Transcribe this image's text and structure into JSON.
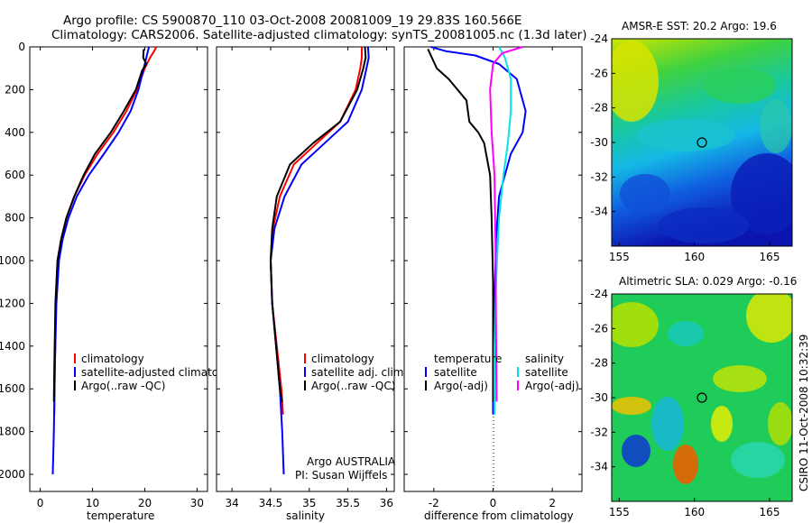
{
  "header": {
    "title_line1": "Argo profile: CS 5900870_110 03-Oct-2008 20081009_19 29.83S 160.566E",
    "title_line2": "Climatology: CARS2006. Satellite-adjusted climatology: synTS_20081005.nc (1.3d later)"
  },
  "footer": {
    "agency": "Argo AUSTRALIA",
    "pi": "PI: Susan Wijffels",
    "stamp": "CSIRO 11-Oct-2008 10:32:39"
  },
  "colors": {
    "climatology": "#ff0000",
    "satellite": "#0000ff",
    "argo": "#000000",
    "salinity_satellite": "#00e5e5",
    "salinity_argo": "#ff00ff"
  },
  "chart_data": [
    {
      "id": "temperature",
      "type": "line",
      "xlabel": "temperature",
      "ylabel": "",
      "xlim": [
        -2,
        32
      ],
      "ylim": [
        2080,
        0
      ],
      "xticks": [
        0,
        10,
        20,
        30
      ],
      "yticks": [
        0,
        200,
        400,
        600,
        800,
        1000,
        1200,
        1400,
        1600,
        1800,
        2000
      ],
      "legend": [
        "climatology",
        "satellite-adjusted climatology",
        "Argo(..raw -QC)"
      ],
      "series": [
        {
          "name": "climatology",
          "color": "#ff0000",
          "x": [
            22.2,
            21.8,
            21.0,
            20.0,
            18.5,
            16.5,
            14.0,
            11.0,
            8.5,
            6.5,
            5.0,
            4.0,
            3.3,
            3.0,
            2.8,
            2.7
          ],
          "y": [
            0,
            20,
            50,
            100,
            200,
            300,
            400,
            500,
            600,
            700,
            800,
            900,
            1000,
            1200,
            1500,
            1720
          ]
        },
        {
          "name": "satellite-adjusted climatology",
          "color": "#0000ff",
          "x": [
            20.8,
            20.6,
            20.3,
            19.8,
            18.8,
            17.3,
            15.0,
            12.2,
            9.3,
            7.0,
            5.4,
            4.3,
            3.6,
            3.1,
            2.8,
            2.6,
            2.4
          ],
          "y": [
            0,
            20,
            50,
            100,
            200,
            300,
            400,
            500,
            600,
            700,
            800,
            900,
            1000,
            1200,
            1500,
            1800,
            2000
          ]
        },
        {
          "name": "Argo(..raw -QC)",
          "color": "#000000",
          "x": [
            19.8,
            19.7,
            20.3,
            19.5,
            18.3,
            16.0,
            13.5,
            10.5,
            8.3,
            6.5,
            5.0,
            4.0,
            3.3,
            2.9,
            2.7,
            2.6
          ],
          "y": [
            10,
            50,
            80,
            110,
            200,
            300,
            400,
            500,
            600,
            700,
            800,
            900,
            1000,
            1200,
            1500,
            1660
          ]
        }
      ]
    },
    {
      "id": "salinity",
      "type": "line",
      "xlabel": "salinity",
      "ylabel": "",
      "xlim": [
        33.8,
        36.1
      ],
      "ylim": [
        2080,
        0
      ],
      "xticks": [
        34,
        34.5,
        35,
        35.5,
        36
      ],
      "legend": [
        "climatology",
        "satellite adj. clim.",
        "Argo(..raw -QC)"
      ],
      "series": [
        {
          "name": "climatology",
          "color": "#ff0000",
          "x": [
            35.68,
            35.68,
            35.66,
            35.6,
            35.4,
            35.1,
            34.8,
            34.62,
            34.53,
            34.5,
            34.52,
            34.58,
            34.64,
            34.66
          ],
          "y": [
            0,
            50,
            100,
            200,
            350,
            450,
            550,
            700,
            850,
            1000,
            1200,
            1400,
            1600,
            1720
          ]
        },
        {
          "name": "satellite adj. clim.",
          "color": "#0000ff",
          "x": [
            35.76,
            35.77,
            35.74,
            35.68,
            35.5,
            35.2,
            34.9,
            34.68,
            34.55,
            34.5,
            34.52,
            34.57,
            34.62,
            34.65,
            34.67
          ],
          "y": [
            0,
            50,
            100,
            200,
            350,
            450,
            550,
            700,
            850,
            1000,
            1200,
            1400,
            1600,
            1800,
            2000
          ]
        },
        {
          "name": "Argo(..raw -QC)",
          "color": "#000000",
          "x": [
            35.72,
            35.73,
            35.7,
            35.62,
            35.4,
            35.05,
            34.75,
            34.58,
            34.52,
            34.5,
            34.52,
            34.57,
            34.62,
            34.65
          ],
          "y": [
            0,
            50,
            100,
            200,
            350,
            450,
            550,
            700,
            850,
            1000,
            1200,
            1400,
            1600,
            1660
          ]
        }
      ]
    },
    {
      "id": "difference",
      "type": "line",
      "xlabel": "difference from climatology",
      "ylabel": "",
      "xlim": [
        -3,
        3
      ],
      "ylim": [
        2080,
        0
      ],
      "xticks": [
        -2,
        0,
        2
      ],
      "legend_temperature": {
        "heading": "temperature",
        "items": [
          "satellite",
          "Argo(-adj)"
        ]
      },
      "legend_salinity": {
        "heading": "salinity",
        "items": [
          "satellite",
          "Argo(-adj)"
        ]
      },
      "series": [
        {
          "name": "temperature satellite",
          "color": "#0000ff",
          "x": [
            -2.1,
            -1.6,
            -0.6,
            0.2,
            0.8,
            1.1,
            1.0,
            0.6,
            0.2,
            0.1,
            0.05,
            0.0,
            0.0
          ],
          "y": [
            0,
            20,
            40,
            80,
            150,
            300,
            400,
            500,
            700,
            900,
            1200,
            1500,
            1720
          ]
        },
        {
          "name": "temperature Argo(-adj)",
          "color": "#000000",
          "x": [
            -2.2,
            -1.9,
            -1.5,
            -0.9,
            -0.8,
            -0.5,
            -0.3,
            -0.1,
            -0.05,
            0.0,
            0.0
          ],
          "y": [
            10,
            100,
            150,
            250,
            350,
            400,
            450,
            600,
            800,
            1100,
            1660
          ]
        },
        {
          "name": "salinity satellite",
          "color": "#00e5e5",
          "x": [
            0.2,
            0.4,
            0.6,
            0.6,
            0.5,
            0.35,
            0.2,
            0.1,
            0.05,
            0.05
          ],
          "y": [
            0,
            50,
            150,
            300,
            450,
            600,
            800,
            1100,
            1400,
            1720
          ]
        },
        {
          "name": "salinity Argo(-adj)",
          "color": "#ff00ff",
          "x": [
            1.0,
            0.3,
            0.0,
            -0.1,
            -0.05,
            0.05,
            0.08,
            0.1,
            0.12
          ],
          "y": [
            0,
            30,
            80,
            200,
            400,
            600,
            900,
            1300,
            1660
          ]
        }
      ]
    },
    {
      "id": "sst-map",
      "type": "heatmap",
      "title": "AMSR-E SST: 20.2  Argo: 19.6",
      "xlim": [
        154.5,
        166.5
      ],
      "ylim": [
        -36,
        -24
      ],
      "xticks": [
        155,
        160,
        165
      ],
      "yticks": [
        -24,
        -26,
        -28,
        -30,
        -32,
        -34
      ],
      "marker": {
        "lon": 160.566,
        "lat": -29.83
      }
    },
    {
      "id": "sla-map",
      "type": "heatmap",
      "title": "Altimetric SLA: 0.029  Argo: -0.16",
      "xlim": [
        154.5,
        166.5
      ],
      "ylim": [
        -36,
        -24
      ],
      "xticks": [
        155,
        160,
        165
      ],
      "yticks": [
        -24,
        -26,
        -28,
        -30,
        -32,
        -34
      ],
      "marker": {
        "lon": 160.566,
        "lat": -29.83
      }
    }
  ]
}
